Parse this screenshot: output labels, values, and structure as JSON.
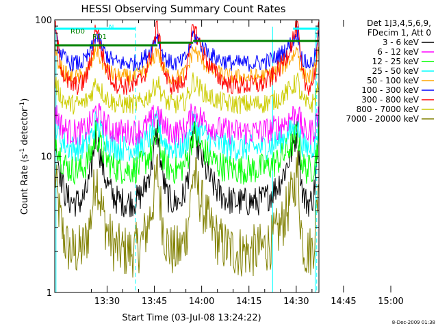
{
  "chart_data": {
    "type": "line",
    "title": "HESSI Observing Summary Count Rates",
    "xlabel": "Start Time (03-Jul-08 13:24:22)",
    "ylabel": "Count Rate (s",
    "ylabel_sup": "-1",
    "ylabel_tail": " detector",
    "ylabel_sup2": "-1",
    "ylabel_close": ")",
    "yscale": "log",
    "ylim": [
      1,
      100
    ],
    "xlim_minutes": [
      13.4,
      97.2
    ],
    "x_ticks": [
      {
        "label": "13:30",
        "minute": 30
      },
      {
        "label": "13:45",
        "minute": 45
      },
      {
        "label": "14:00",
        "minute": 60
      },
      {
        "label": "14:15",
        "minute": 75
      },
      {
        "label": "14:30",
        "minute": 90
      },
      {
        "label": "14:45",
        "minute": 105
      },
      {
        "label": "15:00",
        "minute": 120
      }
    ],
    "y_ticks": [
      {
        "label": "1",
        "value": 1
      },
      {
        "label": "10",
        "value": 10
      },
      {
        "label": "100",
        "value": 100
      }
    ],
    "legend_header": [
      "Det 1,3,4,5,6,9,",
      "FDecim 1, Att 0"
    ],
    "series": [
      {
        "name": "3 - 6 keV",
        "color": "#000000",
        "base": 4.6,
        "edge": 16,
        "noise": 0.9
      },
      {
        "name": "6 - 12 keV",
        "color": "#ff00ff",
        "base": 15,
        "edge": 22,
        "noise": 0.8
      },
      {
        "name": "12 - 25 keV",
        "color": "#00ff00",
        "base": 8,
        "edge": 15,
        "noise": 0.9
      },
      {
        "name": "25 - 50 keV",
        "color": "#00ffff",
        "base": 11.5,
        "edge": 18,
        "noise": 0.8
      },
      {
        "name": "50 - 100 keV",
        "color": "#ffa500",
        "base": 38,
        "edge": 62,
        "noise": 0.5
      },
      {
        "name": "100 - 300 keV",
        "color": "#0000ff",
        "base": 48,
        "edge": 80,
        "noise": 0.5
      },
      {
        "name": "300 - 800 keV",
        "color": "#ff0000",
        "base": 33,
        "edge": 95,
        "noise": 0.6
      },
      {
        "name": "800 - 7000 keV",
        "color": "#cccc00",
        "base": 24,
        "edge": 36,
        "noise": 0.6
      },
      {
        "name": "7000 - 20000 keV",
        "color": "#808000",
        "base": 2.0,
        "edge": 8,
        "noise": 1.6
      }
    ],
    "flags": [
      {
        "name": "RD0",
        "color": "#008000"
      },
      {
        "name": "RD1",
        "color": "#008000"
      },
      {
        "name": "N",
        "color": "#00ffff"
      }
    ],
    "timestamp": "8-Dec-2009 01:38"
  }
}
